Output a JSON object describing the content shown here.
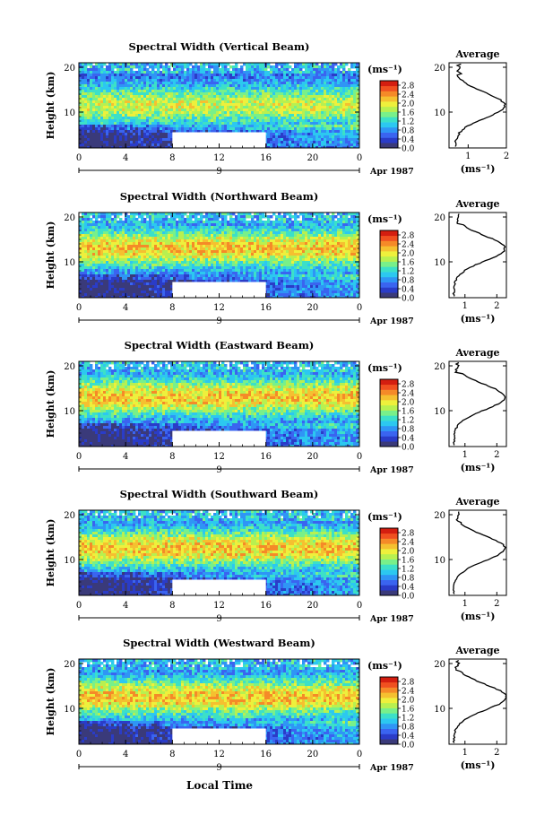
{
  "figure": {
    "xlabel": "Local Time",
    "date_label": "Apr 1987",
    "date_day": "9",
    "ylabel": "Height (km)",
    "colorbar_unit": "(ms⁻¹)",
    "avg_title": "Average",
    "avg_xlabel": "(ms⁻¹)"
  },
  "chart_data": [
    {
      "type": "heatmap",
      "title": "Spectral Width (Vertical Beam)",
      "x_ticks": [
        "0",
        "4",
        "8",
        "12",
        "16",
        "20",
        "0"
      ],
      "xlim": [
        0,
        24
      ],
      "y_ticks": [
        "20",
        "10"
      ],
      "ylim": [
        2,
        21
      ],
      "colorbar": {
        "ticks": [
          "2.8",
          "2.4",
          "2.0",
          "1.6",
          "1.2",
          "0.8",
          "0.4",
          "0.0"
        ],
        "range": [
          0.0,
          3.0
        ]
      },
      "no_data": {
        "x": [
          8,
          16
        ],
        "y": [
          2,
          5.5
        ]
      },
      "average_profile": {
        "xlim": [
          0.5,
          2.0
        ],
        "x_ticks": [
          "1",
          "2"
        ],
        "y_ticks": [
          "20",
          "10"
        ],
        "peak_value": 1.95,
        "peak_height": 11.5
      }
    },
    {
      "type": "heatmap",
      "title": "Spectral Width (Northward Beam)",
      "x_ticks": [
        "0",
        "4",
        "8",
        "12",
        "16",
        "20",
        "0"
      ],
      "xlim": [
        0,
        24
      ],
      "y_ticks": [
        "20",
        "10"
      ],
      "ylim": [
        2,
        21
      ],
      "colorbar": {
        "ticks": [
          "2.8",
          "2.4",
          "2.0",
          "1.6",
          "1.2",
          "0.8",
          "0.4",
          "0.0"
        ],
        "range": [
          0.0,
          3.0
        ]
      },
      "no_data": {
        "x": [
          8,
          16
        ],
        "y": [
          2,
          5.5
        ]
      },
      "average_profile": {
        "xlim": [
          0.5,
          2.3
        ],
        "x_ticks": [
          "1",
          "2"
        ],
        "y_ticks": [
          "20",
          "10"
        ],
        "peak_value": 2.25,
        "peak_height": 13
      }
    },
    {
      "type": "heatmap",
      "title": "Spectral Width (Eastward Beam)",
      "x_ticks": [
        "0",
        "4",
        "8",
        "12",
        "16",
        "20",
        "0"
      ],
      "xlim": [
        0,
        24
      ],
      "y_ticks": [
        "20",
        "10"
      ],
      "ylim": [
        2,
        21
      ],
      "colorbar": {
        "ticks": [
          "2.8",
          "2.4",
          "2.0",
          "1.6",
          "1.2",
          "0.8",
          "0.4",
          "0.0"
        ],
        "range": [
          0.0,
          3.0
        ]
      },
      "no_data": {
        "x": [
          8,
          16
        ],
        "y": [
          2,
          5.5
        ]
      },
      "average_profile": {
        "xlim": [
          0.5,
          2.3
        ],
        "x_ticks": [
          "1",
          "2"
        ],
        "y_ticks": [
          "20",
          "10"
        ],
        "peak_value": 2.25,
        "peak_height": 13
      }
    },
    {
      "type": "heatmap",
      "title": "Spectral Width (Southward Beam)",
      "x_ticks": [
        "0",
        "4",
        "8",
        "12",
        "16",
        "20",
        "0"
      ],
      "xlim": [
        0,
        24
      ],
      "y_ticks": [
        "20",
        "10"
      ],
      "ylim": [
        2,
        21
      ],
      "colorbar": {
        "ticks": [
          "2.8",
          "2.4",
          "2.0",
          "1.6",
          "1.2",
          "0.8",
          "0.4",
          "0.0"
        ],
        "range": [
          0.0,
          3.0
        ]
      },
      "no_data": {
        "x": [
          8,
          16
        ],
        "y": [
          2,
          5.5
        ]
      },
      "average_profile": {
        "xlim": [
          0.5,
          2.3
        ],
        "x_ticks": [
          "1",
          "2"
        ],
        "y_ticks": [
          "20",
          "10"
        ],
        "peak_value": 2.25,
        "peak_height": 12.5
      }
    },
    {
      "type": "heatmap",
      "title": "Spectral Width (Westward Beam)",
      "x_ticks": [
        "0",
        "4",
        "8",
        "12",
        "16",
        "20",
        "0"
      ],
      "xlim": [
        0,
        24
      ],
      "y_ticks": [
        "20",
        "10"
      ],
      "ylim": [
        2,
        21
      ],
      "colorbar": {
        "ticks": [
          "2.8",
          "2.4",
          "2.0",
          "1.6",
          "1.2",
          "0.8",
          "0.4",
          "0.0"
        ],
        "range": [
          0.0,
          3.0
        ]
      },
      "no_data": {
        "x": [
          8,
          16
        ],
        "y": [
          2,
          5.5
        ]
      },
      "average_profile": {
        "xlim": [
          0.5,
          2.3
        ],
        "x_ticks": [
          "1",
          "2"
        ],
        "y_ticks": [
          "20",
          "10"
        ],
        "peak_value": 2.3,
        "peak_height": 12.5
      }
    }
  ],
  "colors": {
    "scale": [
      "#3a3a7a",
      "#2a3cc8",
      "#3a64f0",
      "#2f95f5",
      "#2cc8f0",
      "#3ce0c8",
      "#78f08a",
      "#b8f050",
      "#eef03c",
      "#f5c030",
      "#f58a28",
      "#f05020",
      "#d41e10"
    ]
  }
}
